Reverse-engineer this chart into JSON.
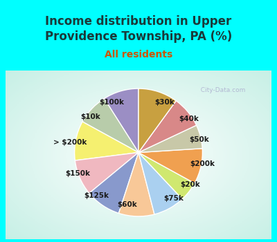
{
  "title": "Income distribution in Upper\nProvidence Township, PA (%)",
  "subtitle": "All residents",
  "title_color": "#1a3a3a",
  "subtitle_color": "#cc5500",
  "background_color": "#00ffff",
  "chart_bg_color": "#e0f5ee",
  "labels": [
    "$100k",
    "$10k",
    "> $200k",
    "$150k",
    "$125k",
    "$60k",
    "$75k",
    "$20k",
    "$200k",
    "$50k",
    "$40k",
    "$30k"
  ],
  "values": [
    9,
    8,
    10,
    9,
    9,
    9,
    8,
    5,
    9,
    6,
    8,
    10
  ],
  "colors": [
    "#9b8ec4",
    "#b8ccaa",
    "#f5f070",
    "#f0b8c0",
    "#8899cc",
    "#f8c898",
    "#aad0f0",
    "#d0e870",
    "#f0a050",
    "#c8c8a8",
    "#d88888",
    "#c8a040"
  ],
  "watermark": "  City-Data.com",
  "label_fontsize": 7.5,
  "title_fontsize": 12,
  "subtitle_fontsize": 10,
  "line_color": "#aaaaaa",
  "label_color": "#1a1a1a"
}
